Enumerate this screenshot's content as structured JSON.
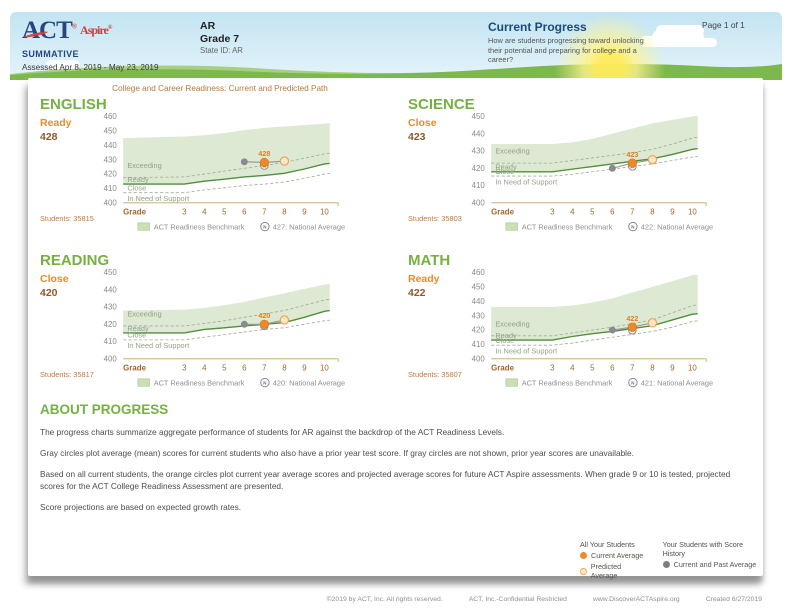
{
  "header": {
    "brand": {
      "act": "ACT",
      "act_reg": "®",
      "aspire": "Aspire",
      "aspire_reg": "®",
      "program": "SUMMATIVE",
      "assessed": "Assessed Apr 8, 2019 - May 23, 2019"
    },
    "org": {
      "name": "AR",
      "grade": "Grade 7",
      "state_id": "State ID: AR"
    },
    "report": {
      "title": "Current Progress",
      "subtitle": "How are students progressing toward unlocking their potential and preparing for college and a career?"
    },
    "page": "Page 1 of 1"
  },
  "section_title": "College and Career Readiness: Current and Predicted Path",
  "about": {
    "title": "ABOUT PROGRESS",
    "p1": "The progress charts summarize aggregate performance of students for AR against the backdrop of the ACT Readiness Levels.",
    "p2": "Gray circles plot average (mean) scores for current students who also have a prior year test score. If gray circles are not shown, prior year scores are unavailable.",
    "p3": "Based on all current students, the orange circles plot current year average scores and projected average scores for future ACT Aspire assessments. When grade 9 or 10 is tested, projected scores for the ACT College Readiness Assessment are presented.",
    "p4": "Score projections are based on expected growth rates."
  },
  "bottom_legend": {
    "col1_title": "All Your Students",
    "current_label": "Current Average",
    "predicted_label": "Predicted Average",
    "col2_title": "Your Students with Score History",
    "past_label": "Current and Past Average"
  },
  "footer": {
    "copyright": "©2019 by ACT, Inc. All rights reserved.",
    "confidential": "ACT, Inc.-Confidential Restricted",
    "website": "www.DiscoverACTAspire.org",
    "created": "Created 6/27/2019"
  },
  "colors": {
    "green_accent": "#76b043",
    "orange_accent": "#ec8a2a",
    "brown_score": "#8b5a28",
    "navy": "#26477e",
    "band_fill": "#dde9d3",
    "benchmark_line": "#4f8f3d"
  },
  "chart_data": [
    {
      "type": "area",
      "subject": "ENGLISH",
      "level": "Ready",
      "score": "428",
      "students": "Students: 35815",
      "xlabel": "Grade",
      "x_ticks": [
        "3",
        "4",
        "5",
        "6",
        "7",
        "8",
        "9",
        "10"
      ],
      "ylim": [
        400,
        460
      ],
      "yticks": [
        460,
        450,
        440,
        430,
        420,
        410,
        400
      ],
      "zone_labels": [
        "Exceeding",
        "Ready",
        "Close",
        "In Need of Support"
      ],
      "band_top": [
        445,
        446,
        447,
        448.5,
        450.5,
        452,
        453,
        454,
        455
      ],
      "benchmark": [
        413,
        413,
        415,
        416.5,
        418,
        419,
        420.5,
        423.5,
        427
      ],
      "dash_upper": [
        417.5,
        418,
        420,
        422,
        424,
        426,
        428,
        431,
        434
      ],
      "dash_lower": [
        407,
        407,
        409,
        410.5,
        412,
        413,
        414.5,
        417,
        420
      ],
      "points": {
        "prior": {
          "grade": 6,
          "value": 428.5
        },
        "current": {
          "grade": 7,
          "value": 428,
          "label": "428"
        },
        "national": {
          "grade": 7,
          "value": 427
        },
        "predicted": {
          "grade": 8,
          "value": 429
        }
      },
      "legend_benchmark": "ACT Readiness Benchmark",
      "legend_national": "427: National Average"
    },
    {
      "type": "area",
      "subject": "SCIENCE",
      "level": "Close",
      "score": "423",
      "students": "Students: 35803",
      "xlabel": "Grade",
      "x_ticks": [
        "3",
        "4",
        "5",
        "6",
        "7",
        "8",
        "9",
        "10"
      ],
      "ylim": [
        400,
        450
      ],
      "yticks": [
        450,
        440,
        430,
        420,
        410,
        400
      ],
      "zone_labels": [
        "Exceeding",
        "Ready",
        "Close",
        "In Need of Support"
      ],
      "band_top": [
        434,
        434,
        435,
        437,
        440,
        443,
        446,
        448,
        450
      ],
      "benchmark": [
        418,
        418,
        419.5,
        421,
        422.5,
        424,
        425.5,
        428,
        431
      ],
      "dash_upper": [
        423,
        423,
        424.5,
        426,
        427.5,
        429,
        431,
        434,
        437.5
      ],
      "dash_lower": [
        415.5,
        415.5,
        416.5,
        418,
        419.5,
        421,
        422.5,
        424.5,
        426.5
      ],
      "points": {
        "prior": {
          "grade": 6,
          "value": 420
        },
        "current": {
          "grade": 7,
          "value": 423,
          "label": "423"
        },
        "national": {
          "grade": 7,
          "value": 422
        },
        "predicted": {
          "grade": 8,
          "value": 425
        }
      },
      "legend_benchmark": "ACT Readiness Benchmark",
      "legend_national": "422: National Average"
    },
    {
      "type": "area",
      "subject": "READING",
      "level": "Close",
      "score": "420",
      "students": "Students: 35817",
      "xlabel": "Grade",
      "x_ticks": [
        "3",
        "4",
        "5",
        "6",
        "7",
        "8",
        "9",
        "10"
      ],
      "ylim": [
        400,
        450
      ],
      "yticks": [
        450,
        440,
        430,
        420,
        410,
        400
      ],
      "zone_labels": [
        "Exceeding",
        "Ready",
        "Close",
        "In Need of Support"
      ],
      "band_top": [
        428,
        428.5,
        429.5,
        431,
        433,
        435.5,
        438,
        440.5,
        443
      ],
      "benchmark": [
        415,
        415,
        417,
        418,
        419,
        420,
        421,
        424,
        427.5
      ],
      "dash_upper": [
        419,
        419,
        420.5,
        422,
        424,
        426,
        428,
        431,
        434
      ],
      "dash_lower": [
        411,
        411,
        412.5,
        414,
        415.5,
        417,
        418,
        420,
        422
      ],
      "points": {
        "prior": {
          "grade": 6,
          "value": 420
        },
        "current": {
          "grade": 7,
          "value": 420,
          "label": "420"
        },
        "national": {
          "grade": 7,
          "value": 420
        },
        "predicted": {
          "grade": 8,
          "value": 422.5
        }
      },
      "legend_benchmark": "ACT Readiness Benchmark",
      "legend_national": "420: National Average"
    },
    {
      "type": "area",
      "subject": "MATH",
      "level": "Ready",
      "score": "422",
      "students": "Students: 35807",
      "xlabel": "Grade",
      "x_ticks": [
        "3",
        "4",
        "5",
        "6",
        "7",
        "8",
        "9",
        "10"
      ],
      "ylim": [
        400,
        460
      ],
      "yticks": [
        460,
        450,
        440,
        430,
        420,
        410,
        400
      ],
      "zone_labels": [
        "Exceeding",
        "Ready",
        "Close",
        "In Need of Support"
      ],
      "band_top": [
        436,
        436,
        437,
        439,
        442,
        446,
        450,
        454,
        458
      ],
      "benchmark": [
        413,
        413,
        415.5,
        417.5,
        419,
        421,
        423,
        427,
        431
      ],
      "dash_upper": [
        416,
        416,
        418,
        420,
        422,
        424.5,
        427,
        432,
        437
      ],
      "dash_lower": [
        409.5,
        409.5,
        411,
        413,
        415,
        417,
        419,
        422,
        426
      ],
      "points": {
        "prior": {
          "grade": 6,
          "value": 420
        },
        "current": {
          "grade": 7,
          "value": 422,
          "label": "422"
        },
        "national": {
          "grade": 7,
          "value": 421
        },
        "predicted": {
          "grade": 8,
          "value": 425
        }
      },
      "legend_benchmark": "ACT Readiness Benchmark",
      "legend_national": "421: National Average"
    }
  ]
}
